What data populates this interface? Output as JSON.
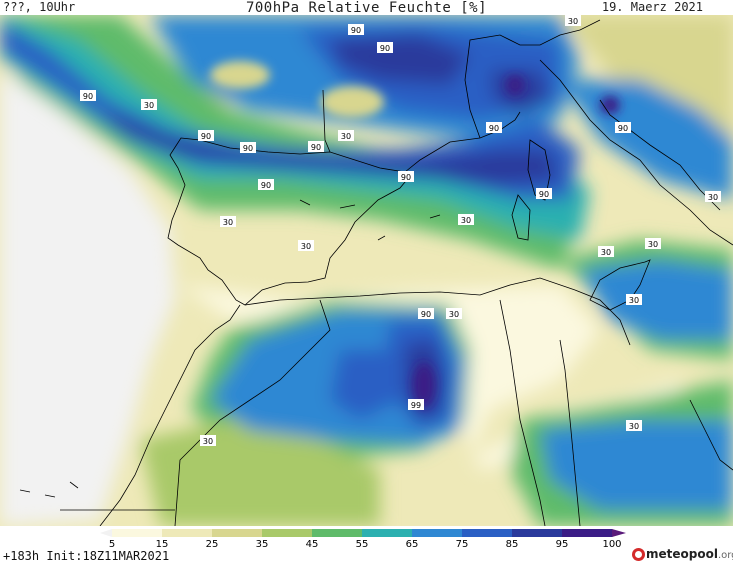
{
  "header": {
    "left": "???, 10Uhr",
    "title": "700hPa Relative Feuchte [%]",
    "right": "19. Maerz 2021"
  },
  "footer": {
    "run_info": "+183h  Init:18Z11MAR2021",
    "brand": "meteopool",
    "brand_suffix": ".org"
  },
  "legend": {
    "ticks": [
      "5",
      "15",
      "25",
      "35",
      "45",
      "55",
      "65",
      "75",
      "85",
      "95",
      "100"
    ],
    "colors": [
      "#f2f2f2",
      "#fbf8df",
      "#eee9b8",
      "#d8d68f",
      "#a9c969",
      "#5fbb6a",
      "#2cb0b0",
      "#2f88d3",
      "#2a5fc4",
      "#2a3a9c",
      "#3b1c86",
      "#5a1a7a"
    ]
  },
  "isolines": [
    {
      "id": "90a",
      "text": "90"
    },
    {
      "id": "90b",
      "text": "90"
    },
    {
      "id": "90c",
      "text": "90"
    },
    {
      "id": "90d",
      "text": "90"
    },
    {
      "id": "90e",
      "text": "90"
    },
    {
      "id": "90f",
      "text": "90"
    },
    {
      "id": "90g",
      "text": "90"
    },
    {
      "id": "90h",
      "text": "90"
    },
    {
      "id": "90i",
      "text": "90"
    },
    {
      "id": "90j",
      "text": "90"
    },
    {
      "id": "90k",
      "text": "90"
    },
    {
      "id": "90l",
      "text": "90"
    },
    {
      "id": "99",
      "text": "99"
    },
    {
      "id": "30a",
      "text": "30"
    },
    {
      "id": "30b",
      "text": "30"
    },
    {
      "id": "30c",
      "text": "30"
    },
    {
      "id": "30d",
      "text": "30"
    },
    {
      "id": "30e",
      "text": "30"
    },
    {
      "id": "30f",
      "text": "30"
    },
    {
      "id": "30g",
      "text": "30"
    },
    {
      "id": "30h",
      "text": "30"
    },
    {
      "id": "30i",
      "text": "30"
    },
    {
      "id": "30j",
      "text": "30"
    },
    {
      "id": "30k",
      "text": "30"
    },
    {
      "id": "30l",
      "text": "30"
    },
    {
      "id": "30m",
      "text": "30"
    }
  ]
}
